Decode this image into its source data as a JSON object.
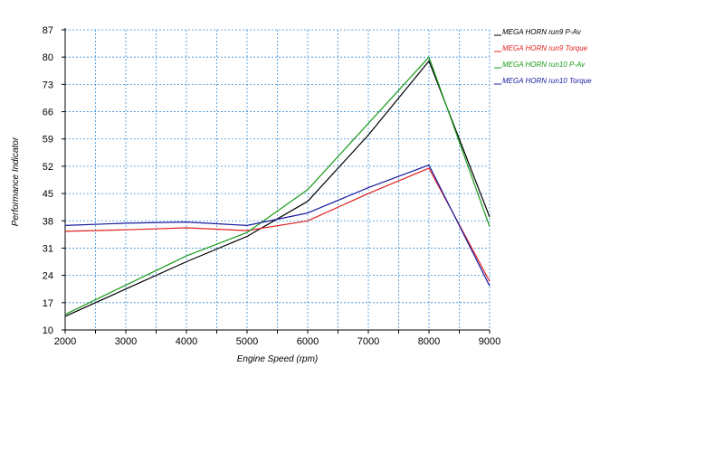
{
  "chart_data": {
    "type": "line",
    "xlabel": "Engine Speed (rpm)",
    "ylabel": "Performance Indicator",
    "xlim": [
      2000,
      9000
    ],
    "ylim": [
      10,
      87
    ],
    "x_ticks": [
      2000,
      3000,
      4000,
      5000,
      6000,
      7000,
      8000,
      9000
    ],
    "y_ticks": [
      10,
      17,
      24,
      31,
      38,
      45,
      52,
      59,
      66,
      73,
      80,
      87
    ],
    "x_grid_step": 500,
    "y_grid_step": 7,
    "grid": true,
    "legend_position": "top-right",
    "x": [
      2000,
      3000,
      4000,
      5000,
      6000,
      7000,
      8000,
      9000
    ],
    "series": [
      {
        "name": "MEGA HORN run9  P-Av",
        "color": "#000000",
        "values": [
          13.5,
          20.5,
          27.5,
          34.0,
          43.0,
          60.0,
          79.0,
          39.0
        ]
      },
      {
        "name": "MEGA HORN run9  Torque",
        "color": "#e02020",
        "values": [
          35.3,
          35.7,
          36.2,
          35.5,
          38.0,
          45.0,
          51.5,
          22.5
        ]
      },
      {
        "name": "MEGA HORN run10  P-Av",
        "color": "#1a9a1a",
        "values": [
          14.0,
          21.5,
          29.0,
          35.0,
          46.0,
          63.0,
          80.0,
          36.5
        ]
      },
      {
        "name": "MEGA HORN run10  Torque",
        "color": "#1a1aa0",
        "values": [
          36.8,
          37.4,
          37.7,
          36.8,
          40.0,
          46.5,
          52.3,
          21.3
        ]
      }
    ]
  }
}
